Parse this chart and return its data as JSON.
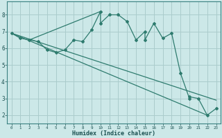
{
  "xlabel": "Humidex (Indice chaleur)",
  "background_color": "#cce8e8",
  "grid_color": "#aacccc",
  "line_color": "#2e7b6e",
  "xlim": [
    -0.5,
    23.5
  ],
  "ylim": [
    1.5,
    8.8
  ],
  "xticks": [
    0,
    1,
    2,
    3,
    4,
    5,
    6,
    7,
    8,
    9,
    10,
    11,
    12,
    13,
    14,
    15,
    16,
    17,
    18,
    19,
    20,
    21,
    22,
    23
  ],
  "yticks": [
    2,
    3,
    4,
    5,
    6,
    7,
    8
  ],
  "series": [
    [
      0,
      6.9
    ],
    [
      1,
      6.6
    ],
    [
      2,
      6.5
    ],
    [
      3,
      6.4
    ],
    [
      4,
      5.9
    ],
    [
      5,
      5.75
    ],
    [
      6,
      5.9
    ],
    [
      7,
      6.5
    ],
    [
      8,
      6.4
    ],
    [
      9,
      7.1
    ],
    [
      10,
      8.2
    ],
    [
      10,
      7.5
    ],
    [
      11,
      8.0
    ],
    [
      12,
      8.0
    ],
    [
      13,
      7.6
    ],
    [
      14,
      6.5
    ],
    [
      15,
      7.0
    ],
    [
      15,
      6.5
    ],
    [
      16,
      7.5
    ],
    [
      17,
      6.6
    ],
    [
      18,
      6.9
    ],
    [
      19,
      4.5
    ],
    [
      20,
      3.0
    ],
    [
      20,
      3.1
    ],
    [
      21,
      3.0
    ],
    [
      22,
      2.0
    ],
    [
      23,
      2.4
    ]
  ],
  "line1": [
    [
      0,
      6.9
    ],
    [
      22,
      2.0
    ]
  ],
  "line2": [
    [
      0,
      6.9
    ],
    [
      23,
      2.9
    ]
  ],
  "line3": [
    [
      2,
      6.5
    ],
    [
      10,
      8.2
    ]
  ]
}
